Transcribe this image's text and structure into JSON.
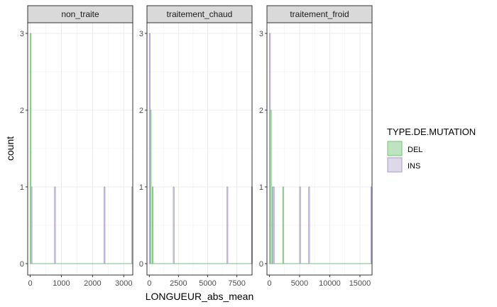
{
  "chart_data": {
    "type": "histogram",
    "xlabel": "LONGUEUR_abs_mean",
    "ylabel": "count",
    "ylim": [
      0,
      3
    ],
    "y_ticks": [
      0,
      1,
      2,
      3
    ],
    "grid": true,
    "legend": {
      "title": "TYPE.DE.MUTATION",
      "placement": "right",
      "entries": [
        {
          "name": "DEL",
          "fill": "#bde3bf",
          "stroke": "#74c476"
        },
        {
          "name": "INS",
          "fill": "#ddd8ea",
          "stroke": "#a99bc6"
        }
      ]
    },
    "facets": [
      {
        "name": "non_traite",
        "xlim": [
          -80,
          3290
        ],
        "x_ticks": [
          0,
          1000,
          2000,
          3000
        ],
        "x_tick_labels": [
          "0",
          "1000",
          "2000",
          "3000"
        ],
        "bars": [
          {
            "series": "DEL",
            "x": 0,
            "width": 30,
            "count": 3
          },
          {
            "series": "INS",
            "x": 30,
            "width": 30,
            "count": 1
          },
          {
            "series": "INS",
            "x": 780,
            "width": 30,
            "count": 1
          },
          {
            "series": "INS",
            "x": 2370,
            "width": 30,
            "count": 1
          },
          {
            "series": "INS",
            "x": 3260,
            "width": 30,
            "count": 1
          }
        ]
      },
      {
        "name": "traitement_chaud",
        "xlim": [
          -200,
          8800
        ],
        "x_ticks": [
          0,
          2500,
          5000,
          7500
        ],
        "x_tick_labels": [
          "0",
          "2500",
          "5000",
          "7500"
        ],
        "bars": [
          {
            "series": "INS",
            "x": 0,
            "width": 80,
            "count": 3
          },
          {
            "series": "DEL",
            "x": 80,
            "width": 80,
            "count": 2
          },
          {
            "series": "DEL",
            "x": 250,
            "width": 80,
            "count": 1
          },
          {
            "series": "INS",
            "x": 2050,
            "width": 80,
            "count": 1
          },
          {
            "series": "INS",
            "x": 6650,
            "width": 80,
            "count": 1
          },
          {
            "series": "INS",
            "x": 8750,
            "width": 80,
            "count": 1
          }
        ]
      },
      {
        "name": "traitement_froid",
        "xlim": [
          -400,
          17000
        ],
        "x_ticks": [
          0,
          5000,
          10000,
          15000
        ],
        "x_tick_labels": [
          "0",
          "5000",
          "10000",
          "15000"
        ],
        "bars": [
          {
            "series": "INS",
            "x": 0,
            "width": 160,
            "count": 3
          },
          {
            "series": "DEL",
            "x": 160,
            "width": 160,
            "count": 2
          },
          {
            "series": "DEL",
            "x": 480,
            "width": 160,
            "count": 1
          },
          {
            "series": "INS",
            "x": 640,
            "width": 160,
            "count": 1
          },
          {
            "series": "DEL",
            "x": 2200,
            "width": 160,
            "count": 1
          },
          {
            "series": "INS",
            "x": 5000,
            "width": 160,
            "count": 1
          },
          {
            "series": "INS",
            "x": 6500,
            "width": 160,
            "count": 1
          },
          {
            "series": "INS",
            "x": 16800,
            "width": 160,
            "count": 1
          }
        ]
      }
    ]
  }
}
